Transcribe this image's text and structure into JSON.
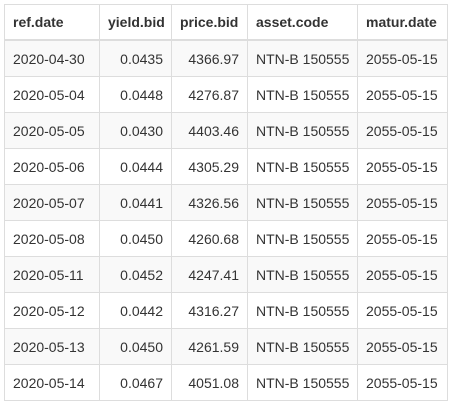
{
  "table": {
    "columns": [
      "ref.date",
      "yield.bid",
      "price.bid",
      "asset.code",
      "matur.date"
    ],
    "rows": [
      [
        "2020-04-30",
        "0.0435",
        "4366.97",
        "NTN-B 150555",
        "2055-05-15"
      ],
      [
        "2020-05-04",
        "0.0448",
        "4276.87",
        "NTN-B 150555",
        "2055-05-15"
      ],
      [
        "2020-05-05",
        "0.0430",
        "4403.46",
        "NTN-B 150555",
        "2055-05-15"
      ],
      [
        "2020-05-06",
        "0.0444",
        "4305.29",
        "NTN-B 150555",
        "2055-05-15"
      ],
      [
        "2020-05-07",
        "0.0441",
        "4326.56",
        "NTN-B 150555",
        "2055-05-15"
      ],
      [
        "2020-05-08",
        "0.0450",
        "4260.68",
        "NTN-B 150555",
        "2055-05-15"
      ],
      [
        "2020-05-11",
        "0.0452",
        "4247.41",
        "NTN-B 150555",
        "2055-05-15"
      ],
      [
        "2020-05-12",
        "0.0442",
        "4316.27",
        "NTN-B 150555",
        "2055-05-15"
      ],
      [
        "2020-05-13",
        "0.0450",
        "4261.59",
        "NTN-B 150555",
        "2055-05-15"
      ],
      [
        "2020-05-14",
        "0.0467",
        "4051.08",
        "NTN-B 150555",
        "2055-05-15"
      ]
    ]
  }
}
